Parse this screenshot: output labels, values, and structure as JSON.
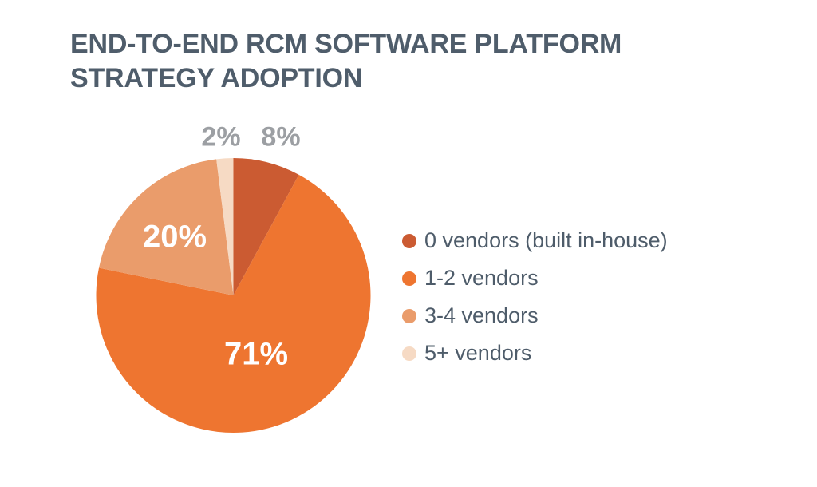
{
  "header": {
    "title_line1": "END-TO-END RCM SOFTWARE PLATFORM",
    "title_line2": "STRATEGY ADOPTION"
  },
  "colors": {
    "background": "#FFFFFF",
    "title_text": "#4F5D6B",
    "legend_text": "#4E5C6A",
    "inside_label": "#FFFFFF",
    "outside_label": "#9C9FA3"
  },
  "chart_data": {
    "type": "pie",
    "title": "END-TO-END RCM SOFTWARE PLATFORM STRATEGY ADOPTION",
    "start_angle_deg": 0,
    "direction": "clockwise",
    "legend_position": "right",
    "slices": [
      {
        "label": "0 vendors (built in-house)",
        "value": 8,
        "display": "8%",
        "color": "#CB5B32",
        "label_placement": "outside"
      },
      {
        "label": "1-2 vendors",
        "value": 71,
        "display": "71%",
        "color": "#EE7530",
        "label_placement": "inside"
      },
      {
        "label": "3-4 vendors",
        "value": 20,
        "display": "20%",
        "color": "#EA9C6B",
        "label_placement": "inside"
      },
      {
        "label": "5+ vendors",
        "value": 2,
        "display": "2%",
        "color": "#F6DAC4",
        "label_placement": "outside"
      }
    ]
  }
}
